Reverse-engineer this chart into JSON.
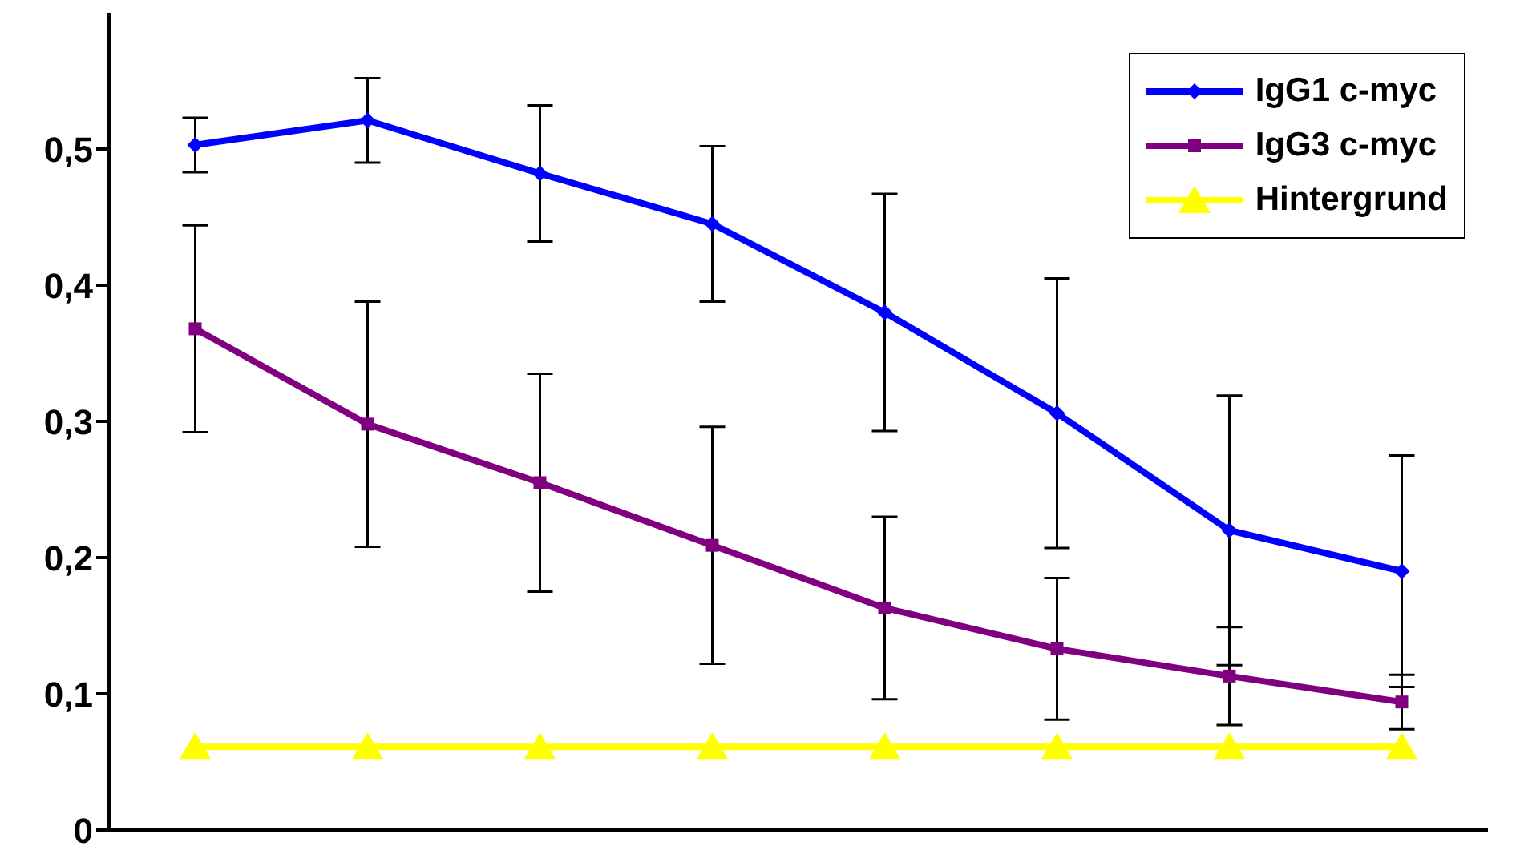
{
  "chart_data": {
    "type": "line",
    "categories": [
      null,
      null,
      null,
      null,
      null,
      null,
      null,
      null
    ],
    "series": [
      {
        "name": "IgG1 c-myc",
        "color": "#0000ff",
        "marker": "diamond",
        "values": [
          0.503,
          0.521,
          0.482,
          0.445,
          0.38,
          0.306,
          0.22,
          0.19
        ],
        "errors": [
          0.02,
          0.031,
          0.05,
          0.057,
          0.087,
          0.099,
          0.099,
          0.085
        ]
      },
      {
        "name": "IgG3 c-myc",
        "color": "#800080",
        "marker": "square",
        "values": [
          0.368,
          0.298,
          0.255,
          0.209,
          0.163,
          0.133,
          0.113,
          0.094
        ],
        "errors": [
          0.076,
          0.09,
          0.08,
          0.087,
          0.067,
          0.052,
          0.036,
          0.02
        ]
      },
      {
        "name": "Hintergrund",
        "color": "#ffff00",
        "marker": "triangle",
        "values": [
          0.061,
          0.061,
          0.061,
          0.061,
          0.061,
          0.061,
          0.061,
          0.061
        ]
      }
    ],
    "ylim": [
      0,
      0.6
    ],
    "yticks": [
      {
        "value": 0,
        "label": "0"
      },
      {
        "value": 0.1,
        "label": "0,1"
      },
      {
        "value": 0.2,
        "label": "0,2"
      },
      {
        "value": 0.3,
        "label": "0,3"
      },
      {
        "value": 0.4,
        "label": "0,4"
      },
      {
        "value": 0.5,
        "label": "0,5"
      }
    ],
    "grid": false,
    "legend": "top right",
    "line_style": "solid"
  }
}
